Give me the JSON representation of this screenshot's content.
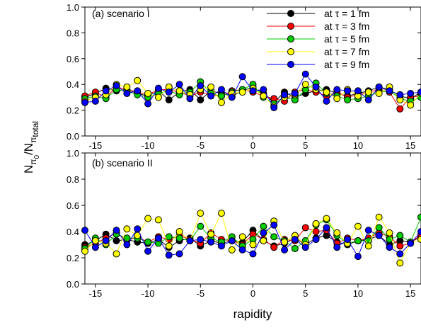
{
  "chart_data": [
    {
      "type": "line",
      "title": "(a) scenario I",
      "xlabel": "rapidity",
      "ylabel": "N_π0/N_π_total",
      "xlim": [
        -16,
        16
      ],
      "ylim": [
        0.0,
        1.0
      ],
      "xticks": [
        -15,
        -10,
        -5,
        0,
        5,
        10,
        15
      ],
      "yticks": [
        "0.0",
        "0.2",
        "0.4",
        "0.6",
        "0.8",
        "1.0"
      ],
      "legend_position": "top-right",
      "x": [
        -16,
        -15,
        -14,
        -13,
        -12,
        -11,
        -10,
        -9,
        -8,
        -7,
        -6,
        -5,
        -4,
        -3,
        -2,
        -1,
        0,
        1,
        2,
        3,
        4,
        5,
        6,
        7,
        8,
        9,
        10,
        11,
        12,
        13,
        14,
        15,
        16
      ],
      "series": [
        {
          "name": "at τ = 1 fm",
          "color": "#000000",
          "values": [
            0.3,
            0.33,
            0.37,
            0.35,
            0.36,
            0.33,
            0.31,
            0.35,
            0.28,
            0.34,
            0.36,
            0.28,
            0.35,
            0.33,
            0.31,
            0.35,
            0.38,
            0.33,
            0.26,
            0.34,
            0.3,
            0.33,
            0.35,
            0.36,
            0.33,
            0.31,
            0.33,
            0.35,
            0.38,
            0.36,
            0.31,
            0.29,
            0.34
          ]
        },
        {
          "name": "at τ = 3 fm",
          "color": "#ff0000",
          "values": [
            0.31,
            0.34,
            0.3,
            0.38,
            0.36,
            0.34,
            0.32,
            0.36,
            0.36,
            0.34,
            0.31,
            0.34,
            0.32,
            0.31,
            0.35,
            0.36,
            0.34,
            0.31,
            0.29,
            0.27,
            0.34,
            0.36,
            0.34,
            0.31,
            0.34,
            0.3,
            0.32,
            0.34,
            0.36,
            0.34,
            0.21,
            0.3,
            0.31
          ]
        },
        {
          "name": "at τ = 5 fm",
          "color": "#00cc00",
          "values": [
            0.29,
            0.31,
            0.29,
            0.36,
            0.35,
            0.32,
            0.3,
            0.33,
            0.35,
            0.32,
            0.34,
            0.42,
            0.33,
            0.31,
            0.34,
            0.36,
            0.4,
            0.3,
            0.25,
            0.3,
            0.28,
            0.36,
            0.41,
            0.33,
            0.31,
            0.28,
            0.29,
            0.31,
            0.34,
            0.35,
            0.29,
            0.27,
            0.3
          ]
        },
        {
          "name": "at τ = 7 fm",
          "color": "#ffff00",
          "values": [
            0.27,
            0.3,
            0.32,
            0.4,
            0.38,
            0.43,
            0.33,
            0.3,
            0.38,
            0.35,
            0.32,
            0.36,
            0.38,
            0.26,
            0.33,
            0.34,
            0.37,
            0.31,
            0.23,
            0.3,
            0.32,
            0.4,
            0.36,
            0.34,
            0.29,
            0.36,
            0.31,
            0.34,
            0.33,
            0.38,
            0.28,
            0.24,
            0.33
          ]
        },
        {
          "name": "at τ = 9 fm",
          "color": "#0000ff",
          "values": [
            0.26,
            0.27,
            0.35,
            0.39,
            0.33,
            0.35,
            0.25,
            0.37,
            0.34,
            0.4,
            0.29,
            0.39,
            0.31,
            0.36,
            0.3,
            0.46,
            0.35,
            0.36,
            0.22,
            0.32,
            0.33,
            0.48,
            0.38,
            0.27,
            0.36,
            0.35,
            0.35,
            0.28,
            0.38,
            0.35,
            0.32,
            0.33,
            0.34
          ]
        }
      ]
    },
    {
      "type": "line",
      "title": "(b) scenario II",
      "xlabel": "rapidity",
      "ylabel": "N_π0/N_π_total",
      "xlim": [
        -16,
        16
      ],
      "ylim": [
        0.0,
        1.0
      ],
      "xticks": [
        -15,
        -10,
        -5,
        0,
        5,
        10,
        15
      ],
      "yticks": [
        "0.0",
        "0.2",
        "0.4",
        "0.6",
        "0.8",
        "1.0"
      ],
      "x": [
        -16,
        -15,
        -14,
        -13,
        -12,
        -11,
        -10,
        -9,
        -8,
        -7,
        -6,
        -5,
        -4,
        -3,
        -2,
        -1,
        0,
        1,
        2,
        3,
        4,
        5,
        6,
        7,
        8,
        9,
        10,
        11,
        12,
        13,
        14,
        15,
        16
      ],
      "series": [
        {
          "name": "at τ = 1 fm",
          "color": "#000000",
          "values": [
            0.3,
            0.33,
            0.38,
            0.33,
            0.34,
            0.32,
            0.31,
            0.34,
            0.28,
            0.33,
            0.35,
            0.29,
            0.33,
            0.31,
            0.33,
            0.32,
            0.41,
            0.33,
            0.29,
            0.31,
            0.35,
            0.3,
            0.35,
            0.37,
            0.32,
            0.3,
            0.33,
            0.34,
            0.37,
            0.3,
            0.33,
            0.32,
            0.36
          ]
        },
        {
          "name": "at τ = 3 fm",
          "color": "#ff0000",
          "values": [
            0.28,
            0.31,
            0.35,
            0.39,
            0.33,
            0.36,
            0.32,
            0.36,
            0.34,
            0.37,
            0.34,
            0.31,
            0.39,
            0.34,
            0.33,
            0.3,
            0.38,
            0.34,
            0.28,
            0.34,
            0.33,
            0.43,
            0.4,
            0.41,
            0.31,
            0.35,
            0.33,
            0.35,
            0.39,
            0.36,
            0.29,
            0.31,
            0.38
          ]
        },
        {
          "name": "at τ = 5 fm",
          "color": "#00cc00",
          "values": [
            0.27,
            0.35,
            0.3,
            0.38,
            0.35,
            0.35,
            0.32,
            0.31,
            0.36,
            0.35,
            0.33,
            0.44,
            0.35,
            0.32,
            0.36,
            0.29,
            0.34,
            0.44,
            0.36,
            0.33,
            0.27,
            0.33,
            0.45,
            0.49,
            0.37,
            0.31,
            0.33,
            0.33,
            0.43,
            0.34,
            0.37,
            0.32,
            0.51
          ]
        },
        {
          "name": "at τ = 7 fm",
          "color": "#ffff00",
          "values": [
            0.25,
            0.33,
            0.31,
            0.23,
            0.42,
            0.37,
            0.5,
            0.49,
            0.29,
            0.4,
            0.33,
            0.54,
            0.38,
            0.54,
            0.26,
            0.36,
            0.3,
            0.33,
            0.48,
            0.32,
            0.37,
            0.3,
            0.46,
            0.5,
            0.39,
            0.31,
            0.44,
            0.29,
            0.51,
            0.39,
            0.16,
            0.31,
            0.34
          ]
        },
        {
          "name": "at τ = 9 fm",
          "color": "#0000ff",
          "values": [
            0.41,
            0.28,
            0.33,
            0.41,
            0.3,
            0.42,
            0.25,
            0.35,
            0.22,
            0.23,
            0.33,
            0.34,
            0.32,
            0.29,
            0.33,
            0.26,
            0.23,
            0.39,
            0.45,
            0.26,
            0.34,
            0.28,
            0.34,
            0.43,
            0.28,
            0.34,
            0.21,
            0.41,
            0.37,
            0.28,
            0.23,
            0.31,
            0.4
          ]
        }
      ]
    }
  ]
}
